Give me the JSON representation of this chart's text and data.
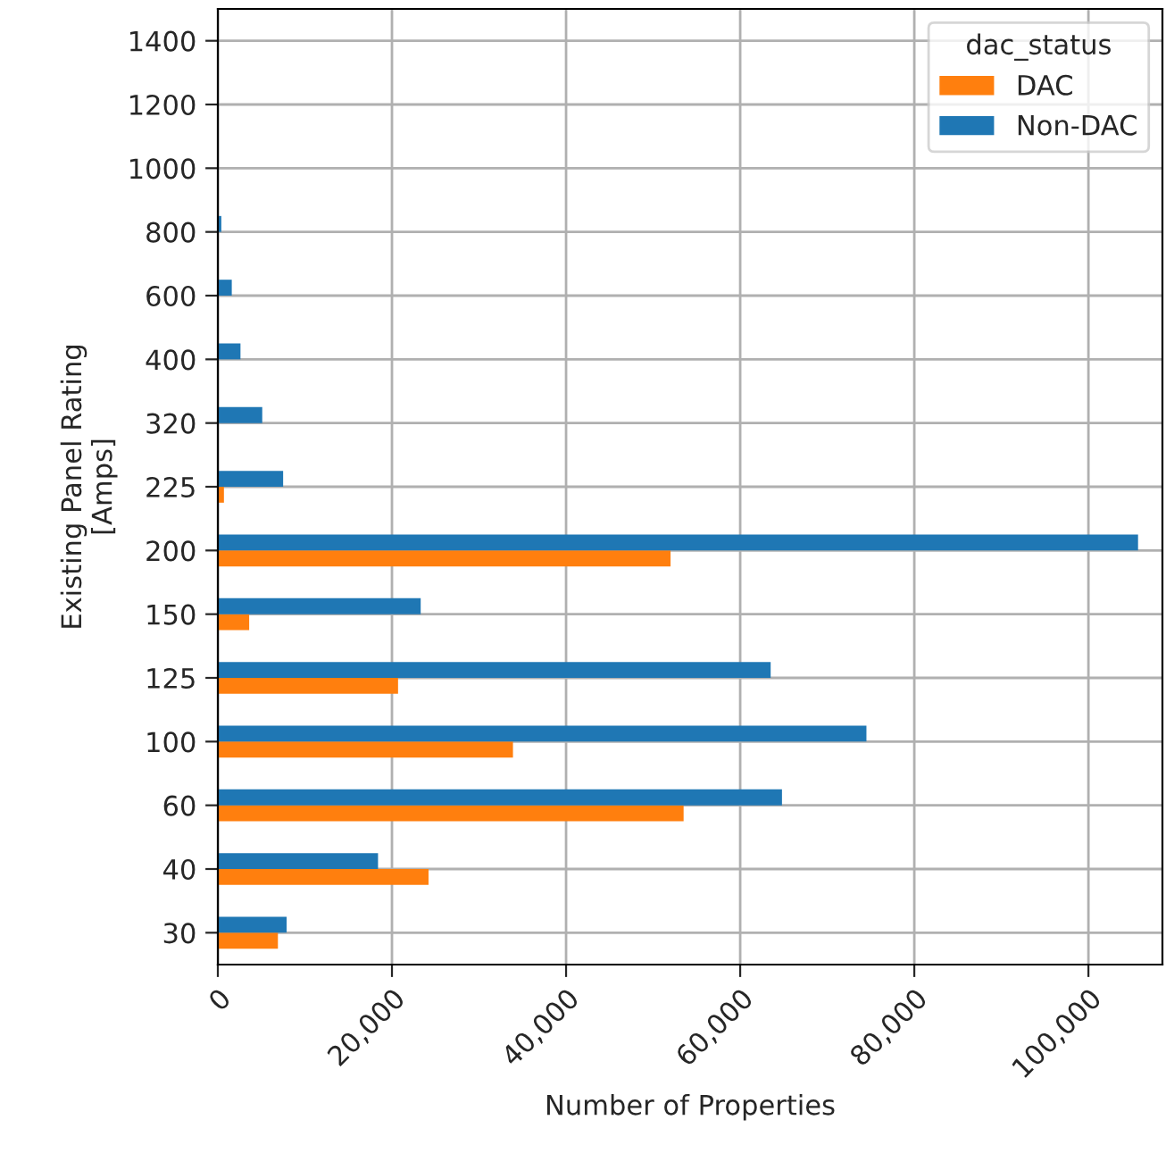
{
  "chart_data": {
    "type": "bar",
    "orientation": "horizontal",
    "xlabel": "Number of Properties",
    "ylabel": "Existing Panel Rating\n[Amps]",
    "legend_title": "dac_status",
    "legend": "top right",
    "grid": true,
    "categories": [
      "1400",
      "1200",
      "1000",
      "800",
      "600",
      "400",
      "320",
      "225",
      "200",
      "150",
      "125",
      "100",
      "60",
      "40",
      "30"
    ],
    "series": [
      {
        "name": "DAC",
        "color": "#ff7f0e",
        "values": [
          0,
          0,
          0,
          0,
          0,
          0,
          0,
          700,
          52000,
          3600,
          20700,
          33900,
          53500,
          24200,
          6900
        ]
      },
      {
        "name": "Non-DAC",
        "color": "#1f77b4",
        "values": [
          0,
          0,
          0,
          400,
          1600,
          2600,
          5100,
          7500,
          105700,
          23300,
          63500,
          74500,
          64800,
          18400,
          7900
        ]
      }
    ],
    "xlim": [
      0,
      108500
    ],
    "xticks": [
      {
        "value": 0,
        "label": "0"
      },
      {
        "value": 20000,
        "label": "20,000"
      },
      {
        "value": 40000,
        "label": "40,000"
      },
      {
        "value": 60000,
        "label": "60,000"
      },
      {
        "value": 80000,
        "label": "80,000"
      },
      {
        "value": 100000,
        "label": "100,000"
      }
    ]
  }
}
